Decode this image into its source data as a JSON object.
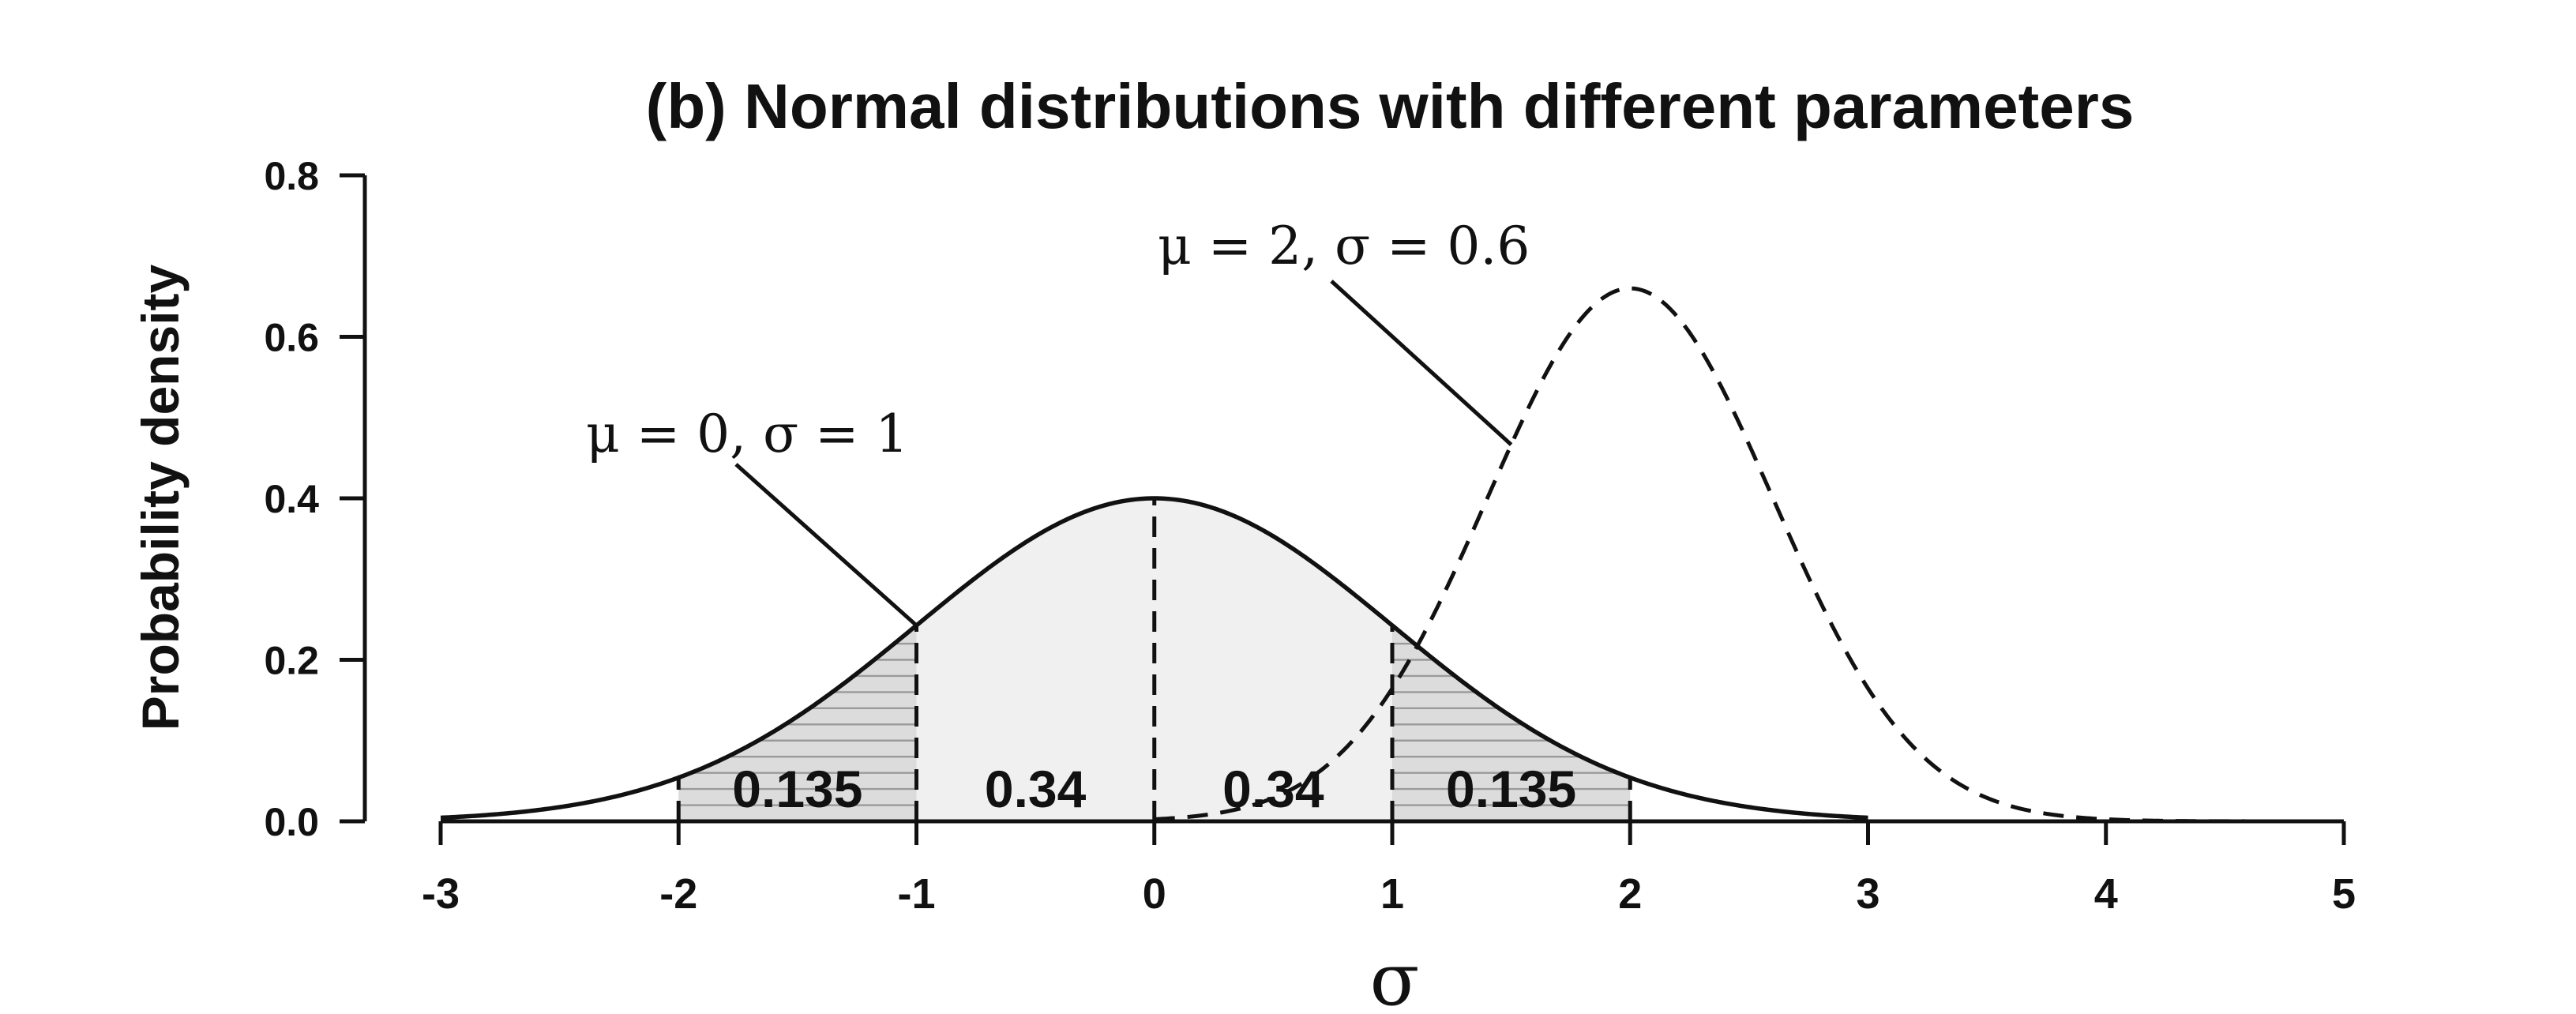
{
  "chart_data": {
    "type": "line",
    "title": "(b) Normal distributions with different parameters",
    "xlabel": "σ",
    "ylabel": "Probability density",
    "xlim": [
      -3,
      5
    ],
    "ylim": [
      0,
      0.8
    ],
    "x_ticks": [
      "-3",
      "-2",
      "-1",
      "0",
      "1",
      "2",
      "3",
      "4",
      "5"
    ],
    "y_ticks": [
      "0.0",
      "0.2",
      "0.4",
      "0.6",
      "0.8"
    ],
    "series": [
      {
        "name": "μ = 0, σ = 1",
        "mu": 0,
        "sigma": 1,
        "line": "solid",
        "range": [
          -3,
          3
        ],
        "peak": 0.4
      },
      {
        "name": "μ = 2, σ = 0.6",
        "mu": 2,
        "sigma": 0.6,
        "line": "dashed",
        "range": [
          0,
          5
        ],
        "peak": 0.66
      }
    ],
    "shaded_regions": [
      {
        "from": -2,
        "to": -1,
        "label": "0.135",
        "fill": "#dcdcdc",
        "hatched": true
      },
      {
        "from": -1,
        "to": 0,
        "label": "0.34",
        "fill": "#f0f0f0",
        "hatched": false
      },
      {
        "from": 0,
        "to": 1,
        "label": "0.34",
        "fill": "#f0f0f0",
        "hatched": false
      },
      {
        "from": 1,
        "to": 2,
        "label": "0.135",
        "fill": "#dcdcdc",
        "hatched": true
      }
    ],
    "vertical_markers": [
      -2,
      -1,
      0,
      1,
      2
    ],
    "annotations": [
      {
        "text": "μ = 0, σ = 1",
        "points_to_x": -1,
        "series": 0
      },
      {
        "text": "μ = 2, σ = 0.6",
        "points_to_x": 1.5,
        "series": 1
      }
    ],
    "grid": false,
    "colors": {
      "curve": "#111111",
      "fill_center": "#f0f0f0",
      "fill_tail": "#dcdcdc",
      "hatch": "#9a9a9a"
    }
  }
}
